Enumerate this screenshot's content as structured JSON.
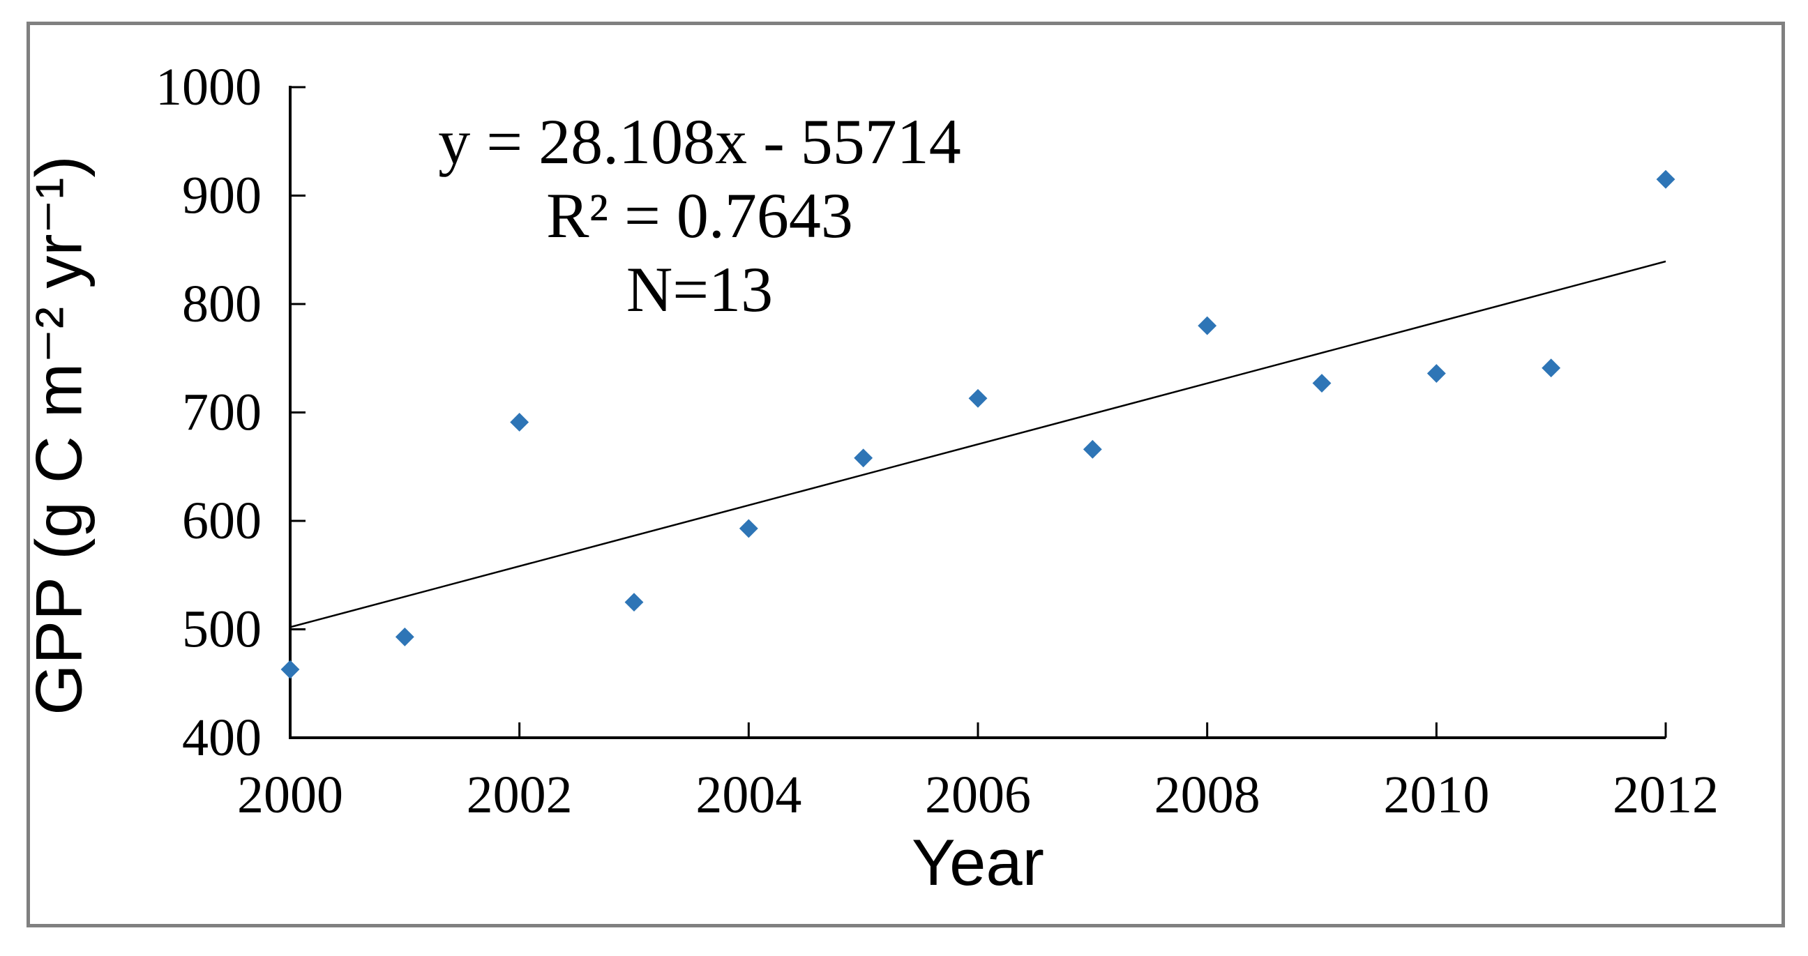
{
  "colors": {
    "marker_blue": "#2E75B6",
    "axis_black": "#000000",
    "frame_gray": "#808080",
    "background": "#FFFFFF"
  },
  "annotation": {
    "line1": "y = 28.108x - 55714",
    "line2": "R² = 0.7643",
    "line3": "N=13"
  },
  "chart_data": {
    "type": "scatter",
    "xlabel": "Year",
    "ylabel": "GPP (g C m⁻² yr⁻¹)",
    "xlim": [
      2000,
      2012
    ],
    "ylim": [
      400,
      1000
    ],
    "x_tick_step": 2,
    "y_tick_step": 100,
    "x_ticks": [
      2000,
      2002,
      2004,
      2006,
      2008,
      2010,
      2012
    ],
    "y_ticks": [
      400,
      500,
      600,
      700,
      800,
      900,
      1000
    ],
    "grid": false,
    "legend": "none",
    "series": [
      {
        "name": "GPP",
        "marker": "diamond",
        "x": [
          2000,
          2001,
          2002,
          2003,
          2004,
          2005,
          2006,
          2007,
          2008,
          2009,
          2010,
          2011,
          2012
        ],
        "y": [
          463,
          493,
          691,
          525,
          593,
          658,
          713,
          666,
          780,
          727,
          736,
          741,
          915
        ]
      }
    ],
    "trendline": {
      "slope": 28.108,
      "intercept": -55714,
      "equation": "y = 28.108x - 55714",
      "r_squared": 0.7643,
      "n": 13
    }
  }
}
